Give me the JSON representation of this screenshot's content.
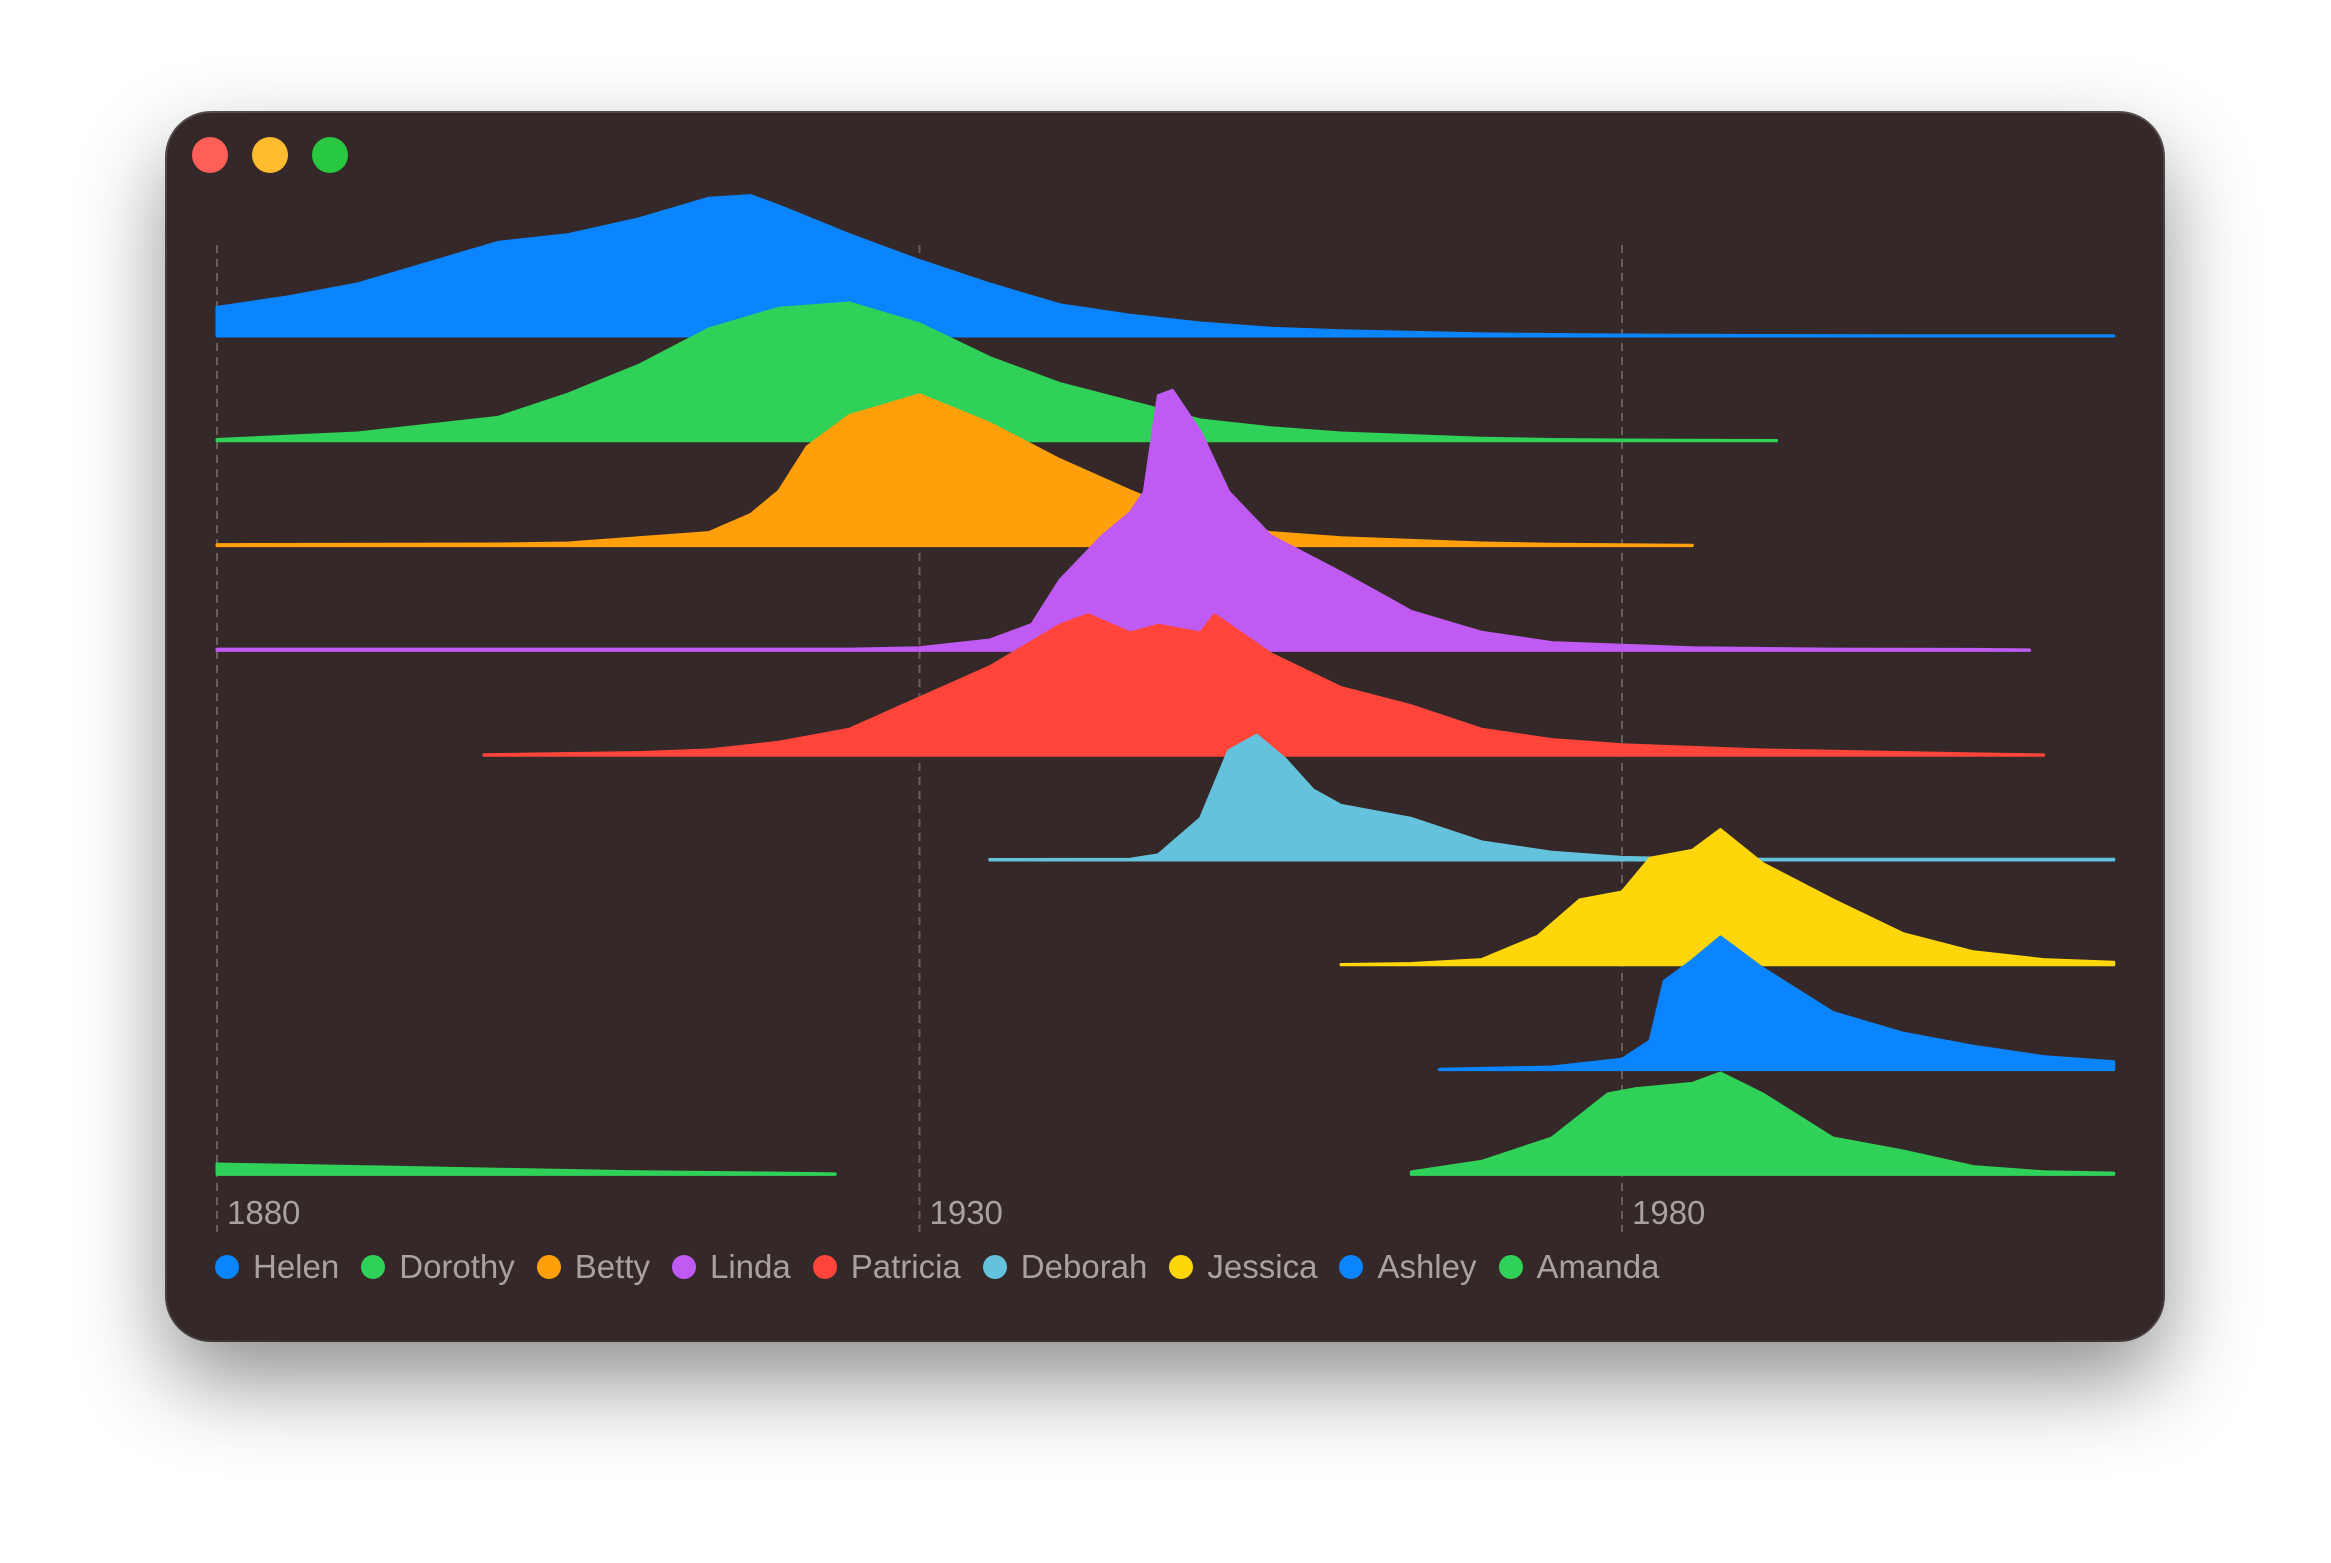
{
  "window": {
    "controls": [
      "close",
      "minimize",
      "zoom"
    ],
    "control_colors": [
      "#ff5f57",
      "#febc2e",
      "#28c840"
    ]
  },
  "chart_data": {
    "type": "area",
    "subtype": "ridgeline",
    "title": "",
    "xlabel": "",
    "ylabel": "",
    "xlim": [
      1880,
      2015
    ],
    "x_ticks": [
      "1880",
      "1930",
      "1980"
    ],
    "grid": "vertical dashed at ticks",
    "legend_position": "bottom-left",
    "y_units": "relative (tallest peak = 1)",
    "series": [
      {
        "name": "Helen",
        "color": "#0a84ff",
        "x": [
          1880,
          1885,
          1890,
          1895,
          1900,
          1905,
          1910,
          1915,
          1918,
          1920,
          1925,
          1930,
          1935,
          1940,
          1945,
          1950,
          1955,
          1960,
          1970,
          1980,
          1990,
          2000,
          2015
        ],
        "y": [
          0.11,
          0.15,
          0.2,
          0.28,
          0.36,
          0.39,
          0.45,
          0.53,
          0.54,
          0.5,
          0.39,
          0.29,
          0.2,
          0.12,
          0.08,
          0.05,
          0.03,
          0.02,
          0.008,
          0.004,
          0.002,
          0.001,
          0.001
        ]
      },
      {
        "name": "Dorothy",
        "color": "#30d158",
        "x": [
          1880,
          1890,
          1900,
          1905,
          1910,
          1915,
          1920,
          1925,
          1930,
          1935,
          1940,
          1945,
          1950,
          1955,
          1960,
          1965,
          1970,
          1975,
          1980,
          1985,
          1991
        ],
        "y": [
          0.005,
          0.03,
          0.09,
          0.18,
          0.29,
          0.43,
          0.51,
          0.53,
          0.45,
          0.32,
          0.22,
          0.15,
          0.08,
          0.05,
          0.03,
          0.02,
          0.01,
          0.005,
          0.003,
          0.002,
          0.001
        ]
      },
      {
        "name": "Betty",
        "color": "#ff9f0a",
        "x": [
          1880,
          1900,
          1905,
          1910,
          1915,
          1918,
          1920,
          1922,
          1925,
          1930,
          1935,
          1940,
          1945,
          1950,
          1955,
          1960,
          1965,
          1970,
          1975,
          1980,
          1985
        ],
        "y": [
          0.004,
          0.006,
          0.01,
          0.03,
          0.05,
          0.12,
          0.21,
          0.38,
          0.5,
          0.58,
          0.47,
          0.33,
          0.21,
          0.1,
          0.05,
          0.03,
          0.02,
          0.01,
          0.005,
          0.003,
          0.001
        ]
      },
      {
        "name": "Linda",
        "color": "#bf5af2",
        "x": [
          1880,
          1925,
          1930,
          1935,
          1938,
          1940,
          1943,
          1945,
          1946,
          1947,
          1948,
          1950,
          1952,
          1955,
          1960,
          1965,
          1970,
          1975,
          1980,
          1985,
          1995,
          2005,
          2009
        ],
        "y": [
          0.005,
          0.005,
          0.01,
          0.04,
          0.1,
          0.27,
          0.44,
          0.53,
          0.61,
          0.98,
          1.0,
          0.84,
          0.61,
          0.44,
          0.3,
          0.15,
          0.07,
          0.03,
          0.02,
          0.01,
          0.005,
          0.004,
          0.002
        ]
      },
      {
        "name": "Patricia",
        "color": "#ff453a",
        "x": [
          1899,
          1910,
          1915,
          1920,
          1925,
          1930,
          1935,
          1940,
          1942,
          1945,
          1947,
          1950,
          1951,
          1955,
          1960,
          1965,
          1970,
          1975,
          1980,
          1985,
          1990,
          1995,
          2000,
          2005,
          2010
        ],
        "y": [
          0.002,
          0.01,
          0.02,
          0.05,
          0.1,
          0.22,
          0.34,
          0.5,
          0.54,
          0.47,
          0.5,
          0.47,
          0.54,
          0.39,
          0.26,
          0.19,
          0.1,
          0.06,
          0.04,
          0.03,
          0.02,
          0.015,
          0.01,
          0.005,
          0.001
        ]
      },
      {
        "name": "Deborah",
        "color": "#64c2dc",
        "x": [
          1935,
          1945,
          1947,
          1950,
          1952,
          1954,
          1956,
          1958,
          1960,
          1965,
          1970,
          1975,
          1980,
          1985,
          1990,
          2015
        ],
        "y": [
          0.002,
          0.003,
          0.02,
          0.16,
          0.42,
          0.48,
          0.39,
          0.27,
          0.21,
          0.16,
          0.07,
          0.03,
          0.01,
          0.005,
          0.003,
          0.003
        ]
      },
      {
        "name": "Jessica",
        "color": "#ffd60a",
        "x": [
          1960,
          1965,
          1970,
          1974,
          1977,
          1980,
          1982,
          1985,
          1987,
          1990,
          1995,
          2000,
          2005,
          2010,
          2015
        ],
        "y": [
          0.001,
          0.005,
          0.02,
          0.11,
          0.25,
          0.28,
          0.41,
          0.44,
          0.52,
          0.39,
          0.25,
          0.12,
          0.05,
          0.02,
          0.01
        ]
      },
      {
        "name": "Ashley",
        "color": "#0a84ff",
        "x": [
          1967,
          1975,
          1980,
          1982,
          1983,
          1985,
          1987,
          1990,
          1995,
          2000,
          2005,
          2010,
          2015
        ],
        "y": [
          0.001,
          0.01,
          0.04,
          0.11,
          0.34,
          0.42,
          0.51,
          0.39,
          0.22,
          0.14,
          0.09,
          0.05,
          0.03
        ]
      },
      {
        "name": "Amanda",
        "color": "#30d158",
        "x": [
          1880,
          1890,
          1900,
          1910,
          1920,
          1924,
          1955,
          1965,
          1970,
          1975,
          1979,
          1981,
          1985,
          1987,
          1990,
          1995,
          2000,
          2005,
          2010,
          2015
        ],
        "y": [
          0.04,
          0.03,
          0.02,
          0.01,
          0.005,
          0.002,
          null,
          0.01,
          0.05,
          0.14,
          0.31,
          0.33,
          0.35,
          0.39,
          0.31,
          0.14,
          0.09,
          0.03,
          0.01,
          0.005
        ]
      }
    ]
  }
}
